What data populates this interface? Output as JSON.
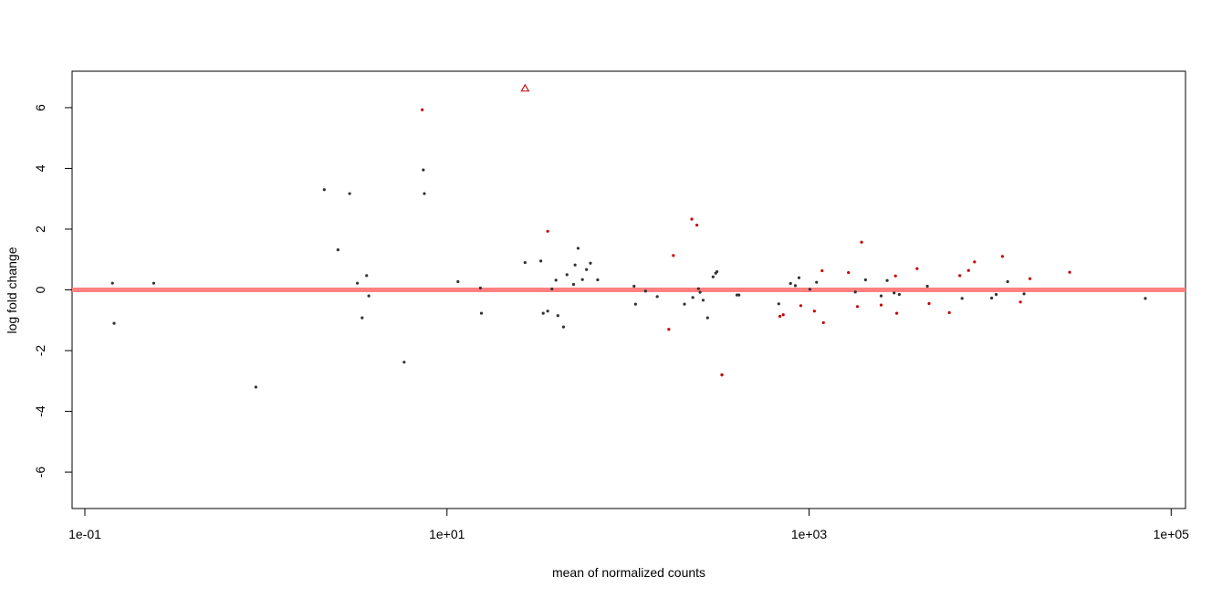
{
  "chart_data": {
    "type": "scatter",
    "title": "",
    "xlabel": "mean of normalized counts",
    "ylabel": "log fold change",
    "x_scale": "log10",
    "xlim": [
      0.085,
      120000
    ],
    "ylim": [
      -7.2,
      7.2
    ],
    "x_ticks": [
      {
        "value": 0.1,
        "label": "1e-01"
      },
      {
        "value": 10,
        "label": "1e+01"
      },
      {
        "value": 1000,
        "label": "1e+03"
      },
      {
        "value": 100000,
        "label": "1e+05"
      }
    ],
    "y_ticks": [
      {
        "value": 6,
        "label": "6"
      },
      {
        "value": 4,
        "label": "4"
      },
      {
        "value": 2,
        "label": "2"
      },
      {
        "value": 0,
        "label": "0"
      },
      {
        "value": -2,
        "label": "-2"
      },
      {
        "value": -4,
        "label": "-4"
      },
      {
        "value": -6,
        "label": "-6"
      }
    ],
    "grid": false,
    "legend": "none",
    "reference_line": {
      "y": 0,
      "color": "#ff8080"
    },
    "colors": {
      "not_significant": "#333333",
      "significant": "#cc0000"
    },
    "series": [
      {
        "values_key": "not_significant",
        "color": "#333333",
        "marker": "dot",
        "x": [
          0.142,
          0.145,
          0.24,
          0.88,
          2.1,
          2.5,
          2.9,
          3.2,
          3.4,
          3.6,
          3.7,
          5.8,
          7.4,
          7.5,
          11.5,
          15.3,
          15.5,
          27,
          33,
          34,
          36,
          38,
          40,
          41,
          44,
          46,
          50,
          51,
          53,
          56,
          59,
          62,
          68,
          108,
          110,
          125,
          145,
          205,
          228,
          245,
          250,
          260,
          275,
          295,
          305,
          310,
          330,
          400,
          410,
          680,
          790,
          840,
          880,
          1010,
          1100,
          1800,
          2050,
          2500,
          2700,
          2950,
          3150,
          4500,
          7000,
          10200,
          10800,
          12500,
          15400,
          72000
        ],
        "y": [
          0.22,
          -1.1,
          0.22,
          -3.2,
          3.3,
          1.32,
          3.17,
          0.22,
          -0.92,
          0.47,
          -0.2,
          -2.38,
          3.95,
          3.17,
          0.27,
          0.06,
          -0.77,
          0.9,
          0.95,
          -0.77,
          -0.7,
          0.03,
          0.32,
          -0.85,
          -1.22,
          0.5,
          0.18,
          0.82,
          1.37,
          0.34,
          0.67,
          0.88,
          0.33,
          0.12,
          -0.47,
          -0.04,
          -0.22,
          -0.47,
          -0.25,
          0.04,
          -0.08,
          -0.34,
          -0.92,
          0.43,
          0.55,
          0.6,
          -2.8,
          -0.17,
          -0.17,
          -0.46,
          0.21,
          0.14,
          0.4,
          0.02,
          0.25,
          -0.07,
          0.33,
          -0.2,
          0.31,
          -0.1,
          -0.15,
          0.12,
          -0.28,
          -0.27,
          -0.15,
          0.27,
          -0.13,
          -0.28
        ]
      },
      {
        "values_key": "significant",
        "color": "#cc0000",
        "marker": "dot",
        "x": [
          7.3,
          36,
          168,
          178,
          225,
          240,
          330,
          690,
          720,
          900,
          1070,
          1180,
          1200,
          1650,
          1850,
          1950,
          2500,
          3000,
          3050,
          3950,
          4600,
          5950,
          6800,
          7600,
          8200,
          11700,
          14700,
          16600,
          27500
        ],
        "y": [
          5.93,
          1.93,
          -1.3,
          1.13,
          2.33,
          2.13,
          -2.8,
          -0.87,
          -0.82,
          -0.52,
          -0.7,
          0.63,
          -1.08,
          0.57,
          -0.55,
          1.57,
          -0.5,
          0.46,
          -0.77,
          0.7,
          -0.45,
          -0.75,
          0.47,
          0.64,
          0.92,
          1.1,
          -0.4,
          0.37,
          0.58
        ]
      },
      {
        "values_key": "out_of_range",
        "color": "#cc0000",
        "marker": "triangle",
        "x": [
          27
        ],
        "y": [
          6.63
        ]
      }
    ]
  }
}
